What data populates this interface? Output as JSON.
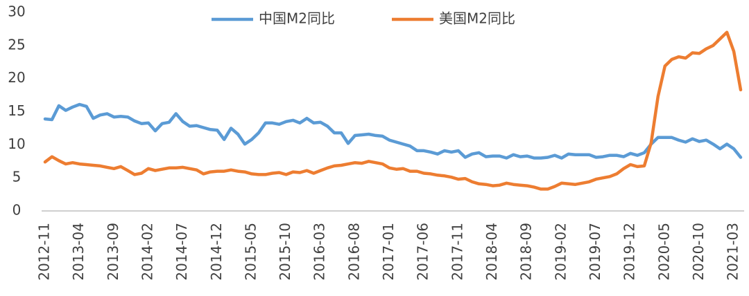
{
  "chart_data": {
    "type": "line",
    "categories": [
      "2012-11",
      null,
      null,
      null,
      null,
      "2013-04",
      null,
      null,
      null,
      null,
      "2013-09",
      null,
      null,
      null,
      null,
      "2014-02",
      null,
      null,
      null,
      null,
      "2014-07",
      null,
      null,
      null,
      null,
      "2014-12",
      null,
      null,
      null,
      null,
      "2015-05",
      null,
      null,
      null,
      null,
      "2015-10",
      null,
      null,
      null,
      null,
      "2016-03",
      null,
      null,
      null,
      null,
      "2016-08",
      null,
      null,
      null,
      null,
      "2017-01",
      null,
      null,
      null,
      null,
      "2017-06",
      null,
      null,
      null,
      null,
      "2017-11",
      null,
      null,
      null,
      null,
      "2018-04",
      null,
      null,
      null,
      null,
      "2018-09",
      null,
      null,
      null,
      null,
      "2019-02",
      null,
      null,
      null,
      null,
      "2019-07",
      null,
      null,
      null,
      null,
      "2019-12",
      null,
      null,
      null,
      null,
      "2020-05",
      null,
      null,
      null,
      null,
      "2020-10",
      null,
      null,
      null,
      null,
      "2021-03",
      null
    ],
    "series": [
      {
        "name": "中国M2同比",
        "color": "#5b9bd5",
        "values": [
          13.9,
          13.8,
          15.9,
          15.2,
          15.7,
          16.1,
          15.8,
          14.0,
          14.5,
          14.7,
          14.2,
          14.3,
          14.2,
          13.6,
          13.2,
          13.3,
          12.1,
          13.2,
          13.4,
          14.7,
          13.5,
          12.8,
          12.9,
          12.6,
          12.3,
          12.2,
          10.8,
          12.5,
          11.6,
          10.1,
          10.8,
          11.8,
          13.3,
          13.3,
          13.1,
          13.5,
          13.7,
          13.3,
          14.0,
          13.3,
          13.4,
          12.8,
          11.8,
          11.8,
          10.2,
          11.4,
          11.5,
          11.6,
          11.4,
          11.3,
          10.7,
          10.4,
          10.1,
          9.8,
          9.1,
          9.1,
          8.9,
          8.6,
          9.1,
          8.9,
          9.1,
          8.1,
          8.6,
          8.8,
          8.2,
          8.3,
          8.3,
          8.0,
          8.5,
          8.2,
          8.3,
          8.0,
          8.0,
          8.1,
          8.4,
          8.0,
          8.6,
          8.5,
          8.5,
          8.5,
          8.1,
          8.2,
          8.4,
          8.4,
          8.2,
          8.7,
          8.4,
          8.8,
          10.1,
          11.1,
          11.1,
          11.1,
          10.7,
          10.4,
          10.9,
          10.5,
          10.7,
          10.1,
          9.4,
          10.1,
          9.4,
          8.1
        ]
      },
      {
        "name": "美国M2同比",
        "color": "#ed7d31",
        "values": [
          7.4,
          8.2,
          7.6,
          7.1,
          7.3,
          7.1,
          7.0,
          6.9,
          6.8,
          6.6,
          6.4,
          6.7,
          6.1,
          5.5,
          5.7,
          6.4,
          6.1,
          6.3,
          6.5,
          6.5,
          6.6,
          6.4,
          6.2,
          5.6,
          5.9,
          6.0,
          6.0,
          6.2,
          6.0,
          5.9,
          5.6,
          5.5,
          5.5,
          5.7,
          5.8,
          5.5,
          5.9,
          5.8,
          6.1,
          5.7,
          6.1,
          6.5,
          6.8,
          6.9,
          7.1,
          7.3,
          7.2,
          7.5,
          7.3,
          7.1,
          6.5,
          6.3,
          6.4,
          6.0,
          6.0,
          5.7,
          5.6,
          5.4,
          5.3,
          5.1,
          4.8,
          4.9,
          4.4,
          4.1,
          4.0,
          3.8,
          3.9,
          4.2,
          4.0,
          3.9,
          3.8,
          3.6,
          3.3,
          3.3,
          3.7,
          4.2,
          4.1,
          4.0,
          4.2,
          4.4,
          4.8,
          5.0,
          5.2,
          5.6,
          6.4,
          7.0,
          6.7,
          6.8,
          10.3,
          17.3,
          21.9,
          22.9,
          23.3,
          23.1,
          23.9,
          23.8,
          24.5,
          25.0,
          26.0,
          27.0,
          24.1,
          18.3
        ]
      }
    ],
    "ylim": [
      0,
      30
    ],
    "yticks": [
      0,
      5,
      10,
      15,
      20,
      25,
      30
    ],
    "grid": false,
    "legend": "top"
  }
}
